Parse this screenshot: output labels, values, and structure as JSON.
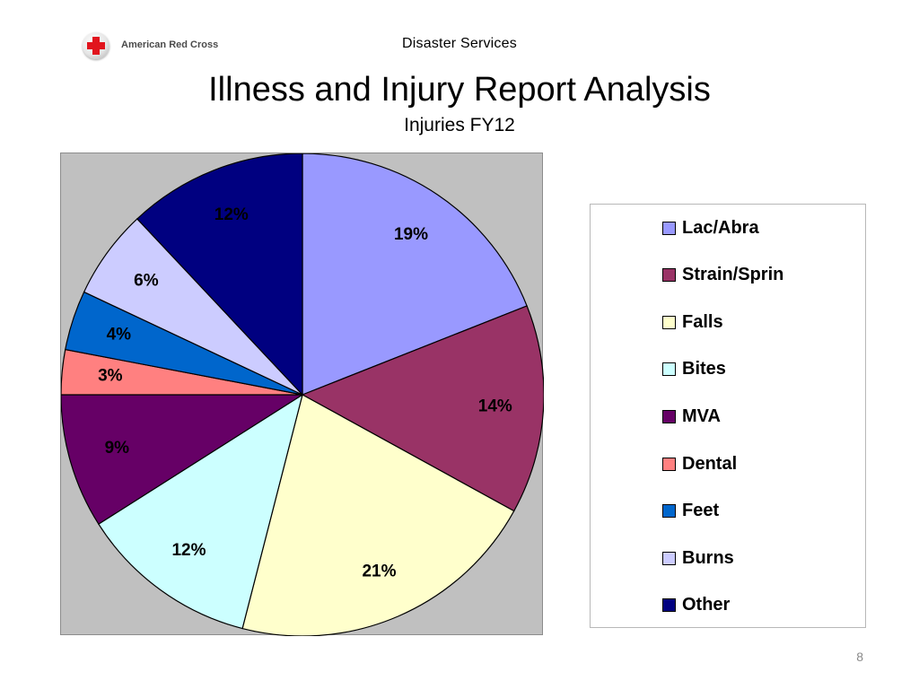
{
  "header": {
    "logo_text": "American Red Cross",
    "label": "Disaster Services"
  },
  "slide": {
    "title": "Illness and Injury Report Analysis",
    "subtitle": "Injuries FY12",
    "page_number": "8"
  },
  "chart_data": {
    "type": "pie",
    "title": "",
    "legend_position": "right",
    "slices": [
      {
        "name": "Lac/Abra",
        "value": 19,
        "label": "19%",
        "color": "#9999ff"
      },
      {
        "name": "Strain/Sprin",
        "value": 14,
        "label": "14%",
        "color": "#993366"
      },
      {
        "name": "Falls",
        "value": 21,
        "label": "21%",
        "color": "#ffffcc"
      },
      {
        "name": "Bites",
        "value": 12,
        "label": "12%",
        "color": "#ccffff"
      },
      {
        "name": "MVA",
        "value": 9,
        "label": "9%",
        "color": "#660066"
      },
      {
        "name": "Dental",
        "value": 3,
        "label": "3%",
        "color": "#ff8080"
      },
      {
        "name": "Feet",
        "value": 4,
        "label": "4%",
        "color": "#0066cc"
      },
      {
        "name": "Burns",
        "value": 6,
        "label": "6%",
        "color": "#ccccff"
      },
      {
        "name": "Other",
        "value": 12,
        "label": "12%",
        "color": "#000080"
      }
    ]
  }
}
